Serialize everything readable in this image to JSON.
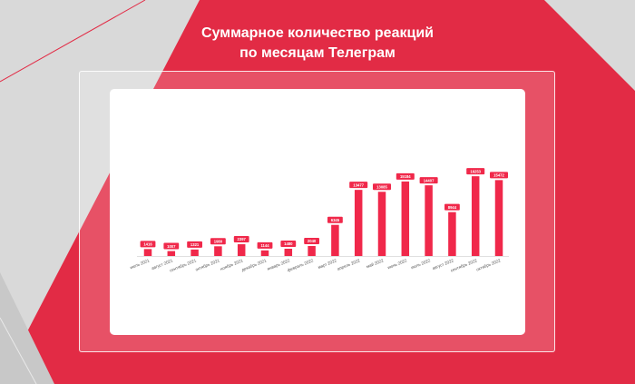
{
  "title": {
    "line1": "Суммарное количество реакций",
    "line2": "по месяцам Телеграм"
  },
  "colors": {
    "brand_red": "#e22b45",
    "bar_red": "#f0284a",
    "background_gray": "#d9d9d9",
    "card_white": "#ffffff"
  },
  "chart_data": {
    "type": "bar",
    "categories": [
      "июль 2021",
      "август 2021",
      "сентябрь 2021",
      "октябрь 2021",
      "ноябрь 2021",
      "декабрь 2021",
      "январь 2022",
      "февраль 2022",
      "март 2022",
      "апрель 2022",
      "май 2022",
      "июнь 2022",
      "июль 2022",
      "август 2022",
      "сентябрь 2022",
      "октябрь 2022"
    ],
    "values": [
      1416,
      1007,
      1321,
      1980,
      2397,
      1144,
      1480,
      2040,
      6345,
      13477,
      13085,
      15184,
      14407,
      8944,
      16253,
      15472
    ],
    "ylim": [
      0,
      18500
    ],
    "grid": false,
    "legend": "none",
    "title": "",
    "xlabel": "",
    "ylabel": ""
  }
}
